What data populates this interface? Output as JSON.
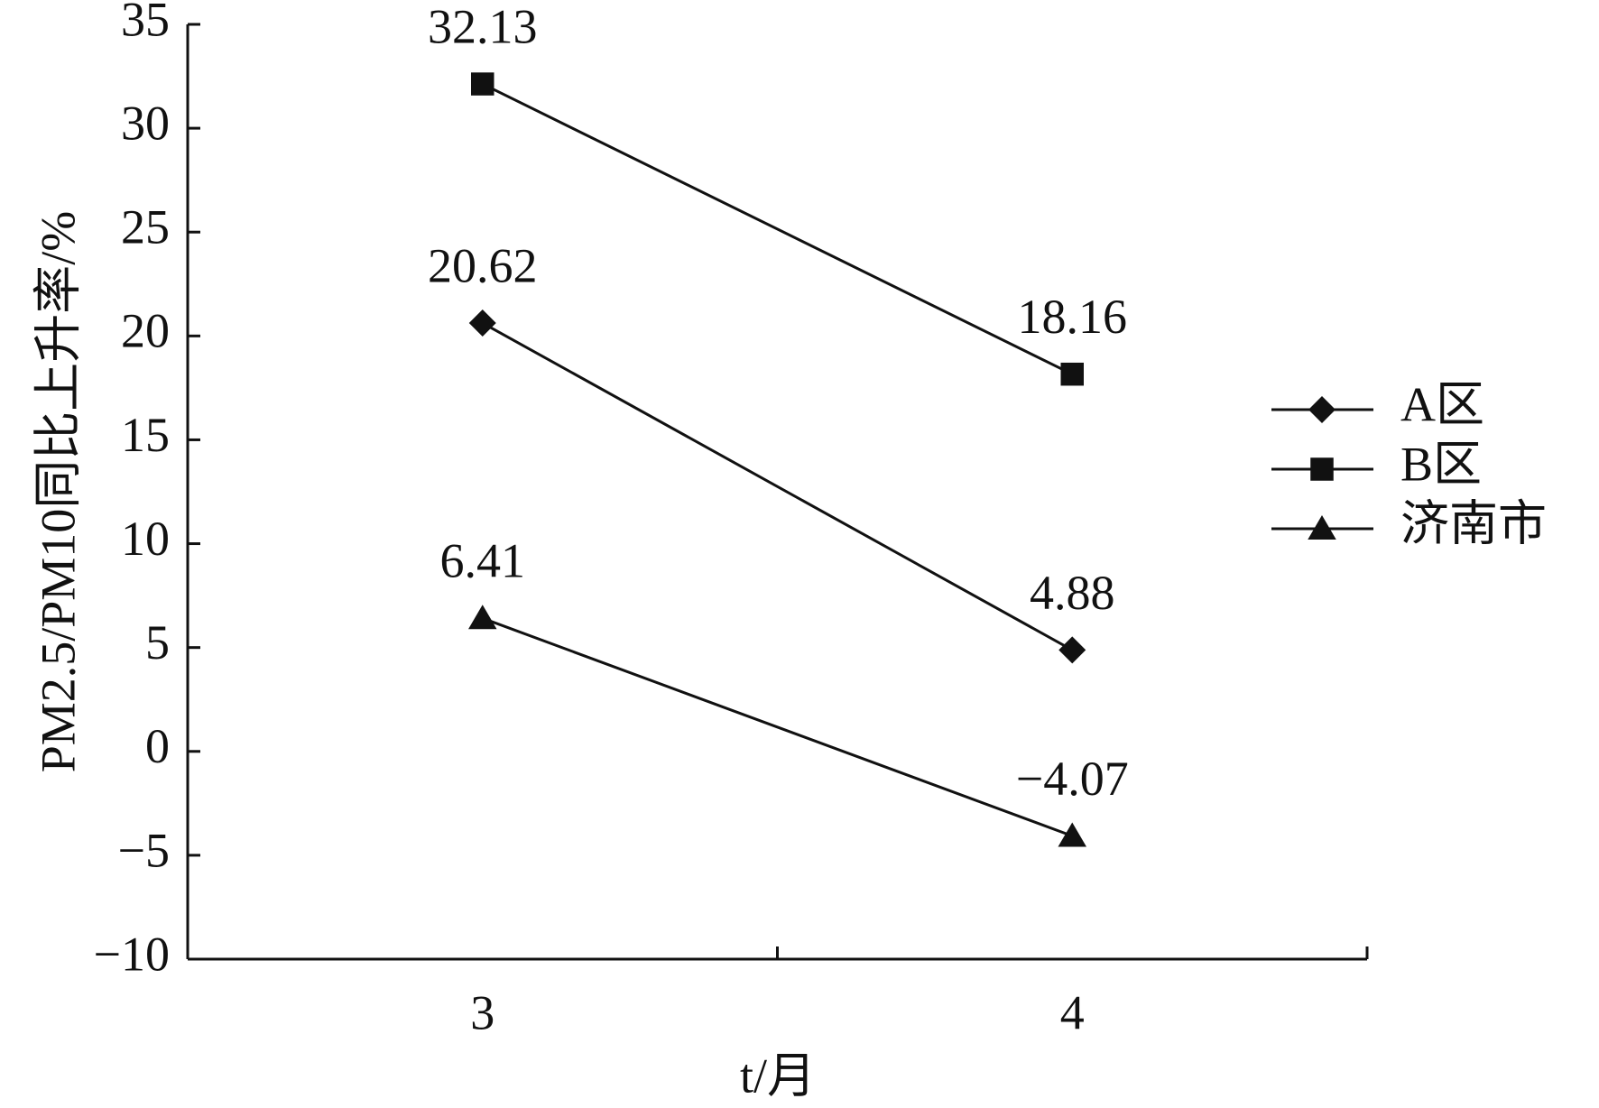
{
  "chart_data": {
    "type": "line",
    "ylabel": "PM2.5/PM10同比上升率/%",
    "xlabel": "t/月",
    "categories": [
      "3",
      "4"
    ],
    "series": [
      {
        "name": "A区",
        "color": "#111111",
        "marker": "diamond",
        "values": [
          20.62,
          4.88
        ]
      },
      {
        "name": "B区",
        "color": "#111111",
        "marker": "square",
        "values": [
          32.13,
          18.16
        ]
      },
      {
        "name": "济南市",
        "color": "#111111",
        "marker": "triangle",
        "values": [
          6.41,
          -4.07
        ],
        "value_labels": [
          "6.41",
          "−4.07"
        ]
      }
    ],
    "ylim": [
      -10,
      35
    ],
    "yticks": [
      {
        "value": -10,
        "label": "−10"
      },
      {
        "value": -5,
        "label": "−5"
      },
      0,
      5,
      10,
      15,
      20,
      25,
      30,
      35
    ],
    "legend": "right"
  }
}
